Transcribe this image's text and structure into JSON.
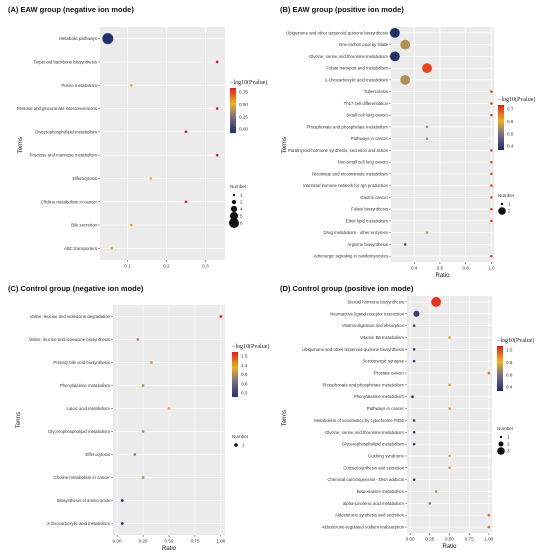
{
  "chart_data": [
    {
      "panel": "A",
      "type": "scatter",
      "title": "(A)  EAW group  (negative ion mode)",
      "xlabel": "",
      "ylabel": "Terms",
      "xlim": [
        0.03,
        0.35
      ],
      "xticks": [
        0.1,
        0.2,
        0.3
      ],
      "terms": [
        "Metabolic pathways",
        "Terpenoid backbone biosynthesis",
        "Purine metabolism",
        "Pentose and glucuronate interconversions",
        "Glycerophospholipid metabolism",
        "Fructose and mannose metabolism",
        "Efferocytosis",
        "Choline metabolism in cancer",
        "Bile secretion",
        "ABC transporters"
      ],
      "ratio": [
        0.05,
        0.33,
        0.11,
        0.33,
        0.25,
        0.33,
        0.16,
        0.25,
        0.11,
        0.06
      ],
      "neglogp": [
        0.0,
        0.9,
        0.6,
        0.9,
        0.9,
        0.9,
        0.6,
        0.9,
        0.6,
        0.6
      ],
      "number": [
        6,
        1,
        1,
        1,
        1,
        1,
        1,
        1,
        1,
        1
      ],
      "colorbar": {
        "title": "−log10(Pvalue)",
        "min": 0.0,
        "max": 0.9,
        "ticks": [
          "0.75",
          "0.50",
          "0.25",
          "0.00"
        ]
      },
      "size_legend": {
        "title": "Number",
        "values": [
          "1",
          "2",
          "4",
          "5",
          "6"
        ]
      }
    },
    {
      "panel": "B",
      "type": "scatter",
      "title": "(B)  EAW group  (positive ion mode)",
      "xlabel": "Ratio",
      "ylabel": "Terms",
      "xlim": [
        0.22,
        1.02
      ],
      "xticks": [
        0.4,
        0.6,
        0.8,
        1.0
      ],
      "xtick_labels": [
        "0.4",
        "0.6",
        "0.8",
        "1.0"
      ],
      "terms": [
        "Ubiquinone and other terpenoid-quinone biosynthesis",
        "One carbon pool by folate",
        "Glycine, serine and threonine metabolism",
        "Folate transport and metabolism",
        "2-Oxocarboxylic acid metabolism",
        "Tuberculosis",
        "Th17 cell differentiation",
        "Small cell lung cancer",
        "Phosphonate and phosphinate metabolism",
        "Pathways in cancer",
        "Parathyroid hormone synthesis, secretion and action",
        "Non-small cell lung cancer",
        "Nicotinate and nicotinamide metabolism",
        "Intestinal immune network for IgA production",
        "Gastric cancer",
        "Folate biosynthesis",
        "Ether lipid metabolism",
        "Drug metabolism - other enzymes",
        "Arginine biosynthesis",
        "Adrenergic signaling in cardiomyocytes"
      ],
      "ratio": [
        0.25,
        0.33,
        0.25,
        0.5,
        0.33,
        1.0,
        1.0,
        1.0,
        0.5,
        0.5,
        1.0,
        1.0,
        1.0,
        1.0,
        1.0,
        1.0,
        1.0,
        0.5,
        0.33,
        1.0
      ],
      "neglogp": [
        0.25,
        0.55,
        0.25,
        0.75,
        0.55,
        0.75,
        0.75,
        0.75,
        0.55,
        0.55,
        0.75,
        0.75,
        0.75,
        0.75,
        0.75,
        0.75,
        0.75,
        0.55,
        0.35,
        0.75
      ],
      "number": [
        2,
        2,
        2,
        2,
        2,
        1,
        1,
        1,
        1,
        1,
        1,
        1,
        1,
        1,
        1,
        1,
        1,
        1,
        1,
        1
      ],
      "colorbar": {
        "title": "−log10(Pvalue)",
        "min": 0.3,
        "max": 0.8,
        "ticks": [
          "0.7",
          "0.6",
          "0.5",
          "0.4"
        ]
      },
      "size_legend": {
        "title": "Number",
        "values": [
          "1",
          "2"
        ]
      }
    },
    {
      "panel": "C",
      "type": "scatter",
      "title": "(C)  Control group  (negative ion mode)",
      "xlabel": "Ratio",
      "ylabel": "Terms",
      "xlim": [
        -0.04,
        1.04
      ],
      "xticks": [
        0.0,
        0.25,
        0.5,
        0.75,
        1.0
      ],
      "xtick_labels": [
        "0.00",
        "0.25",
        "0.50",
        "0.75",
        "1.00"
      ],
      "terms": [
        "Valine, leucine and isoleucine degradation",
        "Valine, leucine and isoleucine biosynthesis",
        "Primary bile acid biosynthesis",
        "Phenylalanine metabolism",
        "Lipoic acid metabolism",
        "Glycerophospholipid metabolism",
        "Efferocytosis",
        "Choline metabolism in cancer",
        "Biosynthesis of amino acids",
        "2-Oxocarboxylic acid metabolism"
      ],
      "ratio": [
        1.0,
        0.2,
        0.33,
        0.25,
        0.5,
        0.25,
        0.17,
        0.25,
        0.05,
        0.05
      ],
      "neglogp": [
        1.6,
        0.95,
        1.05,
        0.95,
        1.2,
        0.95,
        0.85,
        0.95,
        0.3,
        0.3
      ],
      "number": [
        1,
        1,
        1,
        1,
        1,
        1,
        1,
        1,
        1,
        1
      ],
      "colorbar": {
        "title": "−log10(Pvalue)",
        "min": 0.3,
        "max": 1.6,
        "ticks": [
          "1.5",
          "1.2",
          "0.9",
          "0.6",
          "0.3"
        ]
      },
      "size_legend": {
        "title": "Number",
        "values": [
          "1"
        ]
      }
    },
    {
      "panel": "D",
      "type": "scatter",
      "title": "(D)  Control group  (positive ion mode)",
      "xlabel": "Ratio",
      "ylabel": "Terms",
      "xlim": [
        -0.04,
        1.04
      ],
      "xticks": [
        0.0,
        0.25,
        0.5,
        0.75,
        1.0
      ],
      "xtick_labels": [
        "0.00",
        "0.25",
        "0.50",
        "0.75",
        "1.00"
      ],
      "terms": [
        "Steroid hormone biosynthesis",
        "Neuroactive ligand-receptor interaction",
        "Vitamin digestion and absorption",
        "Vitamin B6 metabolism",
        "Ubiquinone and other terpenoid-quinone biosynthesis",
        "Serotonergic synapse",
        "Prostate cancer",
        "Phosphonate and phosphinate metabolism",
        "Phenylalanine metabolism",
        "Pathways in cancer",
        "Metabolism of xenobiotics by cytochrome P450",
        "Glycine, serine and threonine metabolism",
        "Glycerophospholipid metabolism",
        "Cushing syndrome",
        "Cortisol synthesis and secretion",
        "Chemical carcinogenesis - DNA adducts",
        "beta-Alanine metabolism",
        "alpha-Linolenic acid metabolism",
        "Aldosterone synthesis and secretion",
        "Aldosterone-regulated sodium reabsorption"
      ],
      "ratio": [
        0.33,
        0.08,
        0.05,
        0.5,
        0.05,
        0.05,
        1.0,
        0.5,
        0.03,
        0.5,
        0.05,
        0.05,
        0.05,
        0.5,
        0.5,
        0.05,
        0.33,
        0.25,
        1.0,
        1.0
      ],
      "neglogp": [
        1.05,
        0.3,
        0.25,
        0.75,
        0.25,
        0.25,
        0.95,
        0.75,
        0.2,
        0.75,
        0.25,
        0.25,
        0.25,
        0.75,
        0.75,
        0.25,
        0.65,
        0.55,
        0.95,
        0.95
      ],
      "number": [
        3,
        2,
        1,
        1,
        1,
        1,
        1,
        1,
        1,
        1,
        1,
        1,
        1,
        1,
        1,
        1,
        1,
        1,
        1,
        1
      ],
      "colorbar": {
        "title": "−log10(Pvalue)",
        "min": 0.2,
        "max": 1.1,
        "ticks": [
          "1.0",
          "0.8",
          "0.6",
          "0.4"
        ]
      },
      "size_legend": {
        "title": "Number",
        "values": [
          "1",
          "2",
          "3"
        ]
      }
    }
  ]
}
